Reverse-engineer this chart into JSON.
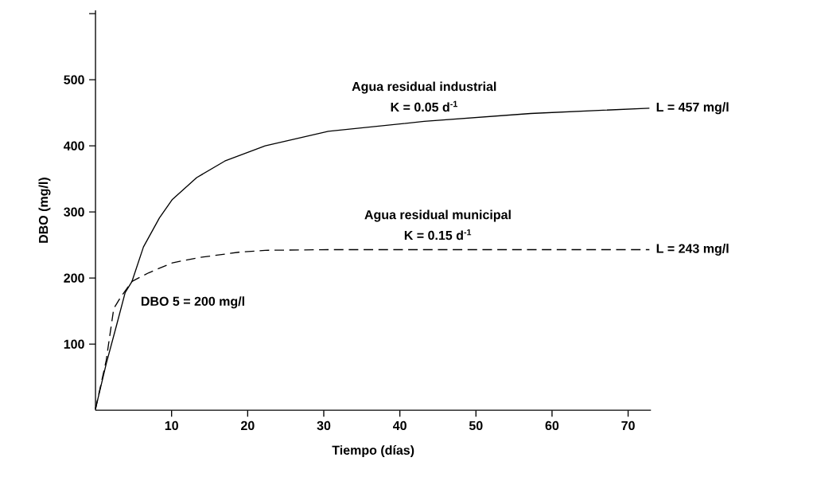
{
  "chart_data": {
    "type": "line",
    "xlabel": "Tiempo (días)",
    "ylabel": "DBO (mg/l)",
    "xlim": [
      0,
      73
    ],
    "ylim": [
      0,
      605
    ],
    "xticks": [
      10,
      20,
      30,
      40,
      50,
      60,
      70
    ],
    "yticks": [
      100,
      200,
      300,
      400,
      500,
      {
        "value": 600,
        "label": null
      }
    ],
    "grid": false,
    "series": [
      {
        "name": "Agua residual industrial",
        "color": "#000000",
        "line_style": "solid",
        "x": [
          0,
          1.4,
          2.8,
          3.9,
          4.8,
          6.3,
          8.4,
          10.1,
          13.3,
          17,
          22.3,
          30.6,
          43.2,
          57.2,
          72.8
        ],
        "values": [
          2,
          70,
          130,
          178,
          195,
          247,
          291,
          319,
          352,
          377,
          400,
          422,
          437,
          449,
          457
        ]
      },
      {
        "name": "Agua residual municipal",
        "color": "#000000",
        "line_style": "dashed",
        "x": [
          0,
          1.4,
          2.4,
          3.3,
          4.8,
          7,
          10.1,
          13.6,
          18.8,
          22.3,
          31,
          45,
          60,
          72.8
        ],
        "values": [
          2,
          75,
          154,
          171,
          195,
          208,
          223,
          231,
          239,
          242,
          243,
          243,
          243,
          243
        ]
      }
    ],
    "annotations": [
      "K = 0.05 d$^{-1}$",
      "K = 0.15 d$^{-1}$",
      "DBO 5 = 200 mg/l",
      "L = 457 mg/l",
      "L = 243 mg/l"
    ]
  }
}
